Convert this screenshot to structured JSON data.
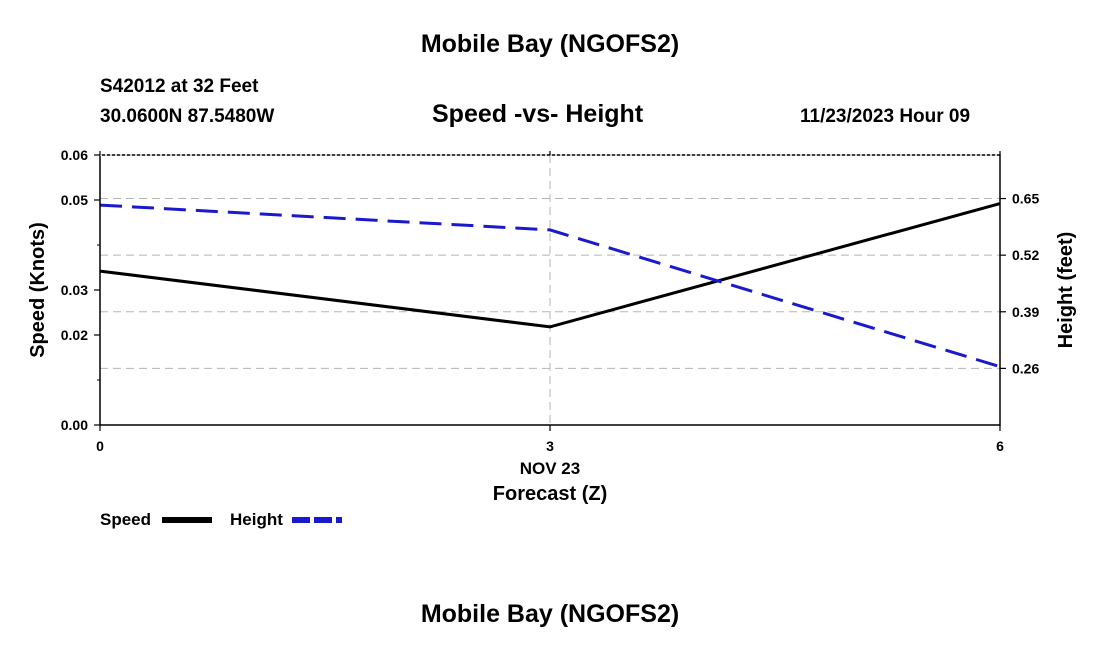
{
  "header": {
    "title": "Mobile Bay (NGOFS2)",
    "station_line": "S42012 at 32 Feet",
    "coords_line": "30.0600N  87.5480W",
    "subtitle": "Speed -vs- Height",
    "datetime": "11/23/2023 Hour 09"
  },
  "footer": {
    "title": "Mobile Bay (NGOFS2)"
  },
  "legend": {
    "speed_label": "Speed",
    "height_label": "Height"
  },
  "chart_data": {
    "type": "line",
    "title": "Speed -vs- Height",
    "xlabel": "Forecast (Z)",
    "x_date_label": "NOV 23",
    "ylabel": "Speed (Knots)",
    "y2label": "Height (feet)",
    "x": [
      0,
      3,
      6
    ],
    "x_ticks": [
      0,
      3,
      6
    ],
    "x_tick_labels": [
      "0",
      "3",
      "6"
    ],
    "xlim": [
      0,
      6
    ],
    "ylim": [
      0,
      0.06
    ],
    "y_ticks": [
      0,
      0.02,
      0.03,
      0.05,
      0.06
    ],
    "y_tick_labels": [
      "0.00",
      "0.02",
      "0.03",
      "0.05",
      "0.06"
    ],
    "y2lim": [
      0.13,
      0.75
    ],
    "y2_ticks": [
      0.26,
      0.39,
      0.52,
      0.65
    ],
    "y2_tick_labels": [
      "0.26",
      "0.39",
      "0.52",
      "0.65"
    ],
    "series": [
      {
        "name": "Speed",
        "axis": "left",
        "values": [
          0.0342,
          0.0218,
          0.0492
        ],
        "color": "#000000",
        "dash": "solid"
      },
      {
        "name": "Height",
        "axis": "right",
        "values": [
          0.635,
          0.578,
          0.264
        ],
        "color": "#1a1acc",
        "dash": "dashed"
      }
    ],
    "grid": true,
    "legend_position": "bottom-left"
  }
}
